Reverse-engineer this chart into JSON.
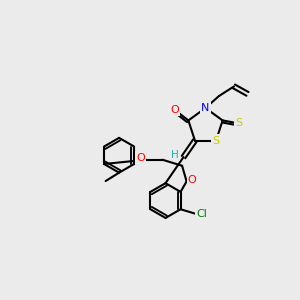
{
  "bg_color": "#ebebeb",
  "bond_color": "#000000",
  "bond_lw": 1.5,
  "atom_colors": {
    "O": "#ff0000",
    "N": "#0000ff",
    "S": "#cccc00",
    "Cl": "#008000",
    "H": "#20b2aa",
    "C": "#000000"
  },
  "font_size": 7.5
}
